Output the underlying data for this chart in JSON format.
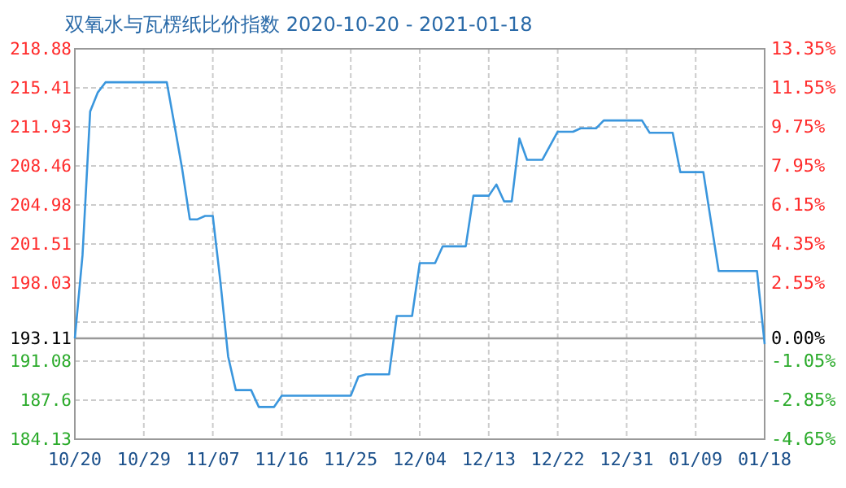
{
  "chart_data": {
    "type": "line",
    "title": "双氧水与瓦楞纸比价指数 2020-10-20 - 2021-01-18",
    "x": [
      "2020-10-20",
      "2020-10-21",
      "2020-10-22",
      "2020-10-23",
      "2020-10-24",
      "2020-11-01",
      "2020-11-02",
      "2020-11-03",
      "2020-11-04",
      "2020-11-05",
      "2020-11-06",
      "2020-11-07",
      "2020-11-08",
      "2020-11-09",
      "2020-11-10",
      "2020-11-12",
      "2020-11-13",
      "2020-11-15",
      "2020-11-16",
      "2020-11-25",
      "2020-11-26",
      "2020-11-27",
      "2020-11-30",
      "2020-12-01",
      "2020-12-03",
      "2020-12-04",
      "2020-12-06",
      "2020-12-07",
      "2020-12-10",
      "2020-12-11",
      "2020-12-13",
      "2020-12-14",
      "2020-12-15",
      "2020-12-16",
      "2020-12-17",
      "2020-12-18",
      "2020-12-20",
      "2020-12-22",
      "2020-12-24",
      "2020-12-25",
      "2020-12-27",
      "2020-12-28",
      "2021-01-02",
      "2021-01-03",
      "2021-01-06",
      "2021-01-07",
      "2021-01-10",
      "2021-01-12",
      "2021-01-17",
      "2021-01-18"
    ],
    "series": [
      {
        "color": "#3a96dd",
        "values": [
          193.1,
          200.5,
          213.3,
          215.0,
          215.9,
          215.9,
          212.1,
          208.2,
          203.7,
          203.7,
          204.0,
          204.0,
          198.1,
          191.5,
          188.5,
          188.5,
          187.0,
          187.0,
          188.0,
          188.0,
          189.7,
          189.9,
          189.9,
          195.1,
          195.1,
          199.8,
          199.8,
          201.3,
          201.3,
          205.8,
          205.8,
          206.8,
          205.3,
          205.3,
          210.9,
          209.0,
          209.0,
          211.5,
          211.5,
          211.8,
          211.8,
          212.5,
          212.5,
          211.4,
          211.4,
          207.9,
          207.9,
          199.1,
          199.1,
          192.6
        ]
      }
    ],
    "xlim": [
      "2020-10-20",
      "2021-01-18"
    ],
    "xticks": [
      {
        "value": "2020-10-20",
        "label": "10/20"
      },
      {
        "value": "2020-10-29",
        "label": "10/29"
      },
      {
        "value": "2020-11-07",
        "label": "11/07"
      },
      {
        "value": "2020-11-16",
        "label": "11/16"
      },
      {
        "value": "2020-11-25",
        "label": "11/25"
      },
      {
        "value": "2020-12-04",
        "label": "12/04"
      },
      {
        "value": "2020-12-13",
        "label": "12/13"
      },
      {
        "value": "2020-12-22",
        "label": "12/22"
      },
      {
        "value": "2020-12-31",
        "label": "12/31"
      },
      {
        "value": "2021-01-09",
        "label": "01/09"
      },
      {
        "value": "2021-01-18",
        "label": "01/18"
      }
    ],
    "ylim": [
      184.13,
      218.88
    ],
    "yticks": [
      184.13,
      187.6,
      191.08,
      193.11,
      {
        "value": 194.56,
        "label": null
      },
      198.03,
      201.51,
      204.98,
      208.46,
      211.93,
      215.41,
      218.88
    ],
    "y2lim": [
      -4.65,
      13.35
    ],
    "y2ticks": [
      {
        "value": -4.65,
        "label": "-4.65%"
      },
      {
        "value": -2.85,
        "label": "-2.85%"
      },
      {
        "value": -1.05,
        "label": "-1.05%"
      },
      {
        "value": 0,
        "label": "0.00%"
      },
      {
        "value": 0.75,
        "label": null
      },
      {
        "value": 2.55,
        "label": "2.55%"
      },
      {
        "value": 4.35,
        "label": "4.35%"
      },
      {
        "value": 6.15,
        "label": "6.15%"
      },
      {
        "value": 7.95,
        "label": "7.95%"
      },
      {
        "value": 9.75,
        "label": "9.75%"
      },
      {
        "value": 11.55,
        "label": "11.55%"
      },
      {
        "value": 13.35,
        "label": "13.35%"
      }
    ],
    "ref_lines": [
      {
        "axis": "y",
        "value": 193.11,
        "color": "#999999"
      }
    ],
    "grid": true,
    "marker": "none",
    "line_style": "solid"
  }
}
